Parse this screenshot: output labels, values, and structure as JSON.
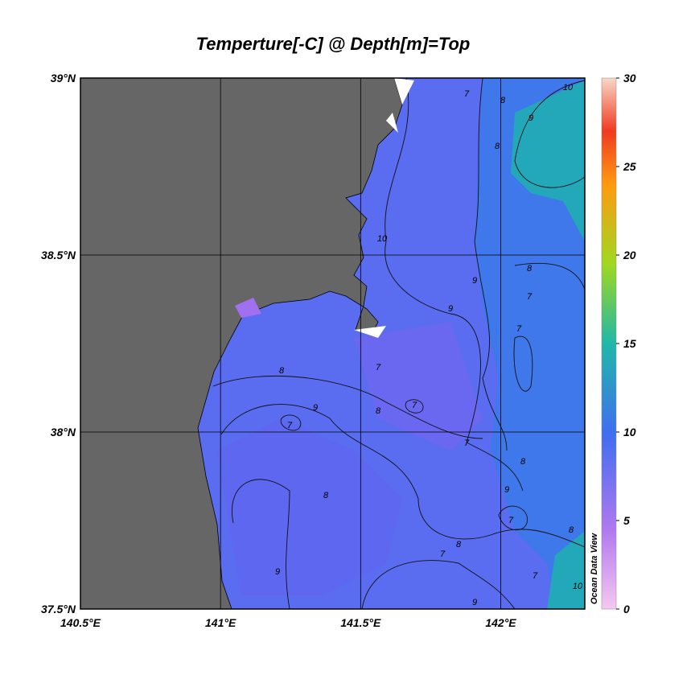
{
  "title": "Temperture[-C] @ Depth[m]=Top",
  "map": {
    "xlim": [
      140.5,
      142.3
    ],
    "ylim": [
      37.5,
      39
    ],
    "xticks": [
      {
        "value": 140.5,
        "label": "140.5°E"
      },
      {
        "value": 141,
        "label": "141°E"
      },
      {
        "value": 141.5,
        "label": "141.5°E"
      },
      {
        "value": 142,
        "label": "142°E"
      }
    ],
    "yticks": [
      {
        "value": 37.5,
        "label": "37.5°N"
      },
      {
        "value": 38,
        "label": "38°N"
      },
      {
        "value": 38.5,
        "label": "38.5°N"
      },
      {
        "value": 39,
        "label": "39°N"
      }
    ],
    "grid": true
  },
  "colorbar": {
    "lim": [
      0,
      30
    ],
    "ticks": [
      0,
      5,
      10,
      15,
      20,
      25,
      30
    ],
    "label": "Ocean Data View"
  },
  "contour_labels": [
    10,
    8,
    9,
    8,
    7,
    10,
    8,
    9,
    7,
    9,
    7,
    7,
    8,
    9,
    7,
    8,
    7,
    7,
    8,
    8,
    8,
    7,
    9,
    7,
    8,
    9,
    7,
    9,
    10
  ]
}
